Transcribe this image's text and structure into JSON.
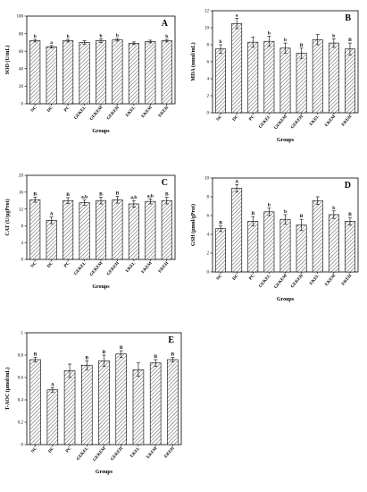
{
  "chart_data": [
    {
      "type": "bar",
      "panel": "A",
      "categories": [
        "NC",
        "DC",
        "PC",
        "GEKEL",
        "GEKEM",
        "GEKEH",
        "EKEL",
        "EKEM",
        "EKEH"
      ],
      "values": [
        72,
        65,
        72,
        70,
        72,
        73,
        69,
        71,
        72
      ],
      "errors": [
        1.5,
        1.5,
        1.5,
        2,
        2,
        1.5,
        1.5,
        1.5,
        1.5
      ],
      "labels": [
        "b",
        "a",
        "b",
        "",
        "b",
        "b",
        "",
        "",
        "b"
      ],
      "xlabel": "Groups",
      "ylabel": "SOD (U/mL)",
      "ylim": [
        0,
        100
      ],
      "yticks": [
        0,
        20,
        40,
        60,
        80,
        100
      ]
    },
    {
      "type": "bar",
      "panel": "B",
      "categories": [
        "NC",
        "DC",
        "PC",
        "GEKEL",
        "GEKEM",
        "GEKEH",
        "EKEL",
        "EKEM",
        "EKEH"
      ],
      "values": [
        7.5,
        10.5,
        8.3,
        8.4,
        7.6,
        7.0,
        8.6,
        8.2,
        7.5
      ],
      "errors": [
        0.5,
        0.6,
        0.6,
        0.6,
        0.6,
        0.6,
        0.6,
        0.5,
        0.7
      ],
      "labels": [
        "b",
        "a",
        "",
        "b",
        "b",
        "B",
        "",
        "b",
        "B"
      ],
      "xlabel": "Groups",
      "ylabel": "MDA (nmol/mL)",
      "ylim": [
        0,
        12
      ],
      "yticks": [
        0,
        2,
        4,
        6,
        8,
        10,
        12
      ]
    },
    {
      "type": "bar",
      "panel": "C",
      "categories": [
        "NC",
        "DC",
        "PC",
        "GEKEL",
        "GEKEM",
        "GEKEH",
        "EKEL",
        "EKEM",
        "EKEH"
      ],
      "values": [
        14.2,
        9.3,
        14.0,
        13.5,
        14.0,
        14.2,
        13.2,
        13.8,
        14.0
      ],
      "errors": [
        0.6,
        0.8,
        0.7,
        0.6,
        0.8,
        0.8,
        0.8,
        0.6,
        0.8
      ],
      "labels": [
        "B",
        "A",
        "B",
        "a,b",
        "B",
        "B",
        "a,b",
        "a,b",
        "B"
      ],
      "xlabel": "Groups",
      "ylabel": "CAT (U/μgProt)",
      "ylim": [
        0,
        20
      ],
      "yticks": [
        0,
        4,
        8,
        12,
        16,
        20
      ]
    },
    {
      "type": "bar",
      "panel": "D",
      "categories": [
        "NC",
        "DC",
        "PC",
        "GEKEL",
        "GEKEM",
        "GEKEH",
        "EKEL",
        "EKEM",
        "EKEH"
      ],
      "values": [
        4.6,
        8.9,
        5.4,
        6.4,
        5.6,
        5.0,
        7.6,
        6.1,
        5.4
      ],
      "errors": [
        0.3,
        0.4,
        0.5,
        0.4,
        0.5,
        0.6,
        0.4,
        0.4,
        0.4
      ],
      "labels": [
        "B",
        "A",
        "B",
        "b",
        "b",
        "B",
        "",
        "b",
        "B"
      ],
      "xlabel": "Groups",
      "ylabel": "GSH (μmol/gProt)",
      "ylim": [
        0,
        10
      ],
      "yticks": [
        0,
        2,
        4,
        6,
        8,
        10
      ]
    },
    {
      "type": "bar",
      "panel": "E",
      "categories": [
        "NC",
        "DC",
        "PC",
        "GEKEL",
        "GEKEM",
        "GEKEH",
        "EKEL",
        "EKEM",
        "EKEH"
      ],
      "values": [
        0.76,
        0.49,
        0.66,
        0.71,
        0.75,
        0.81,
        0.67,
        0.73,
        0.76
      ],
      "errors": [
        0.02,
        0.02,
        0.06,
        0.04,
        0.05,
        0.03,
        0.06,
        0.03,
        0.02
      ],
      "labels": [
        "B",
        "A",
        "",
        "B",
        "B",
        "B",
        "",
        "B",
        "B"
      ],
      "xlabel": "Groups",
      "ylabel": "T-AOC (μmol/mL)",
      "ylim": [
        0,
        1.0
      ],
      "yticks": [
        0,
        0.2,
        0.4,
        0.6,
        0.8,
        1.0
      ]
    }
  ]
}
